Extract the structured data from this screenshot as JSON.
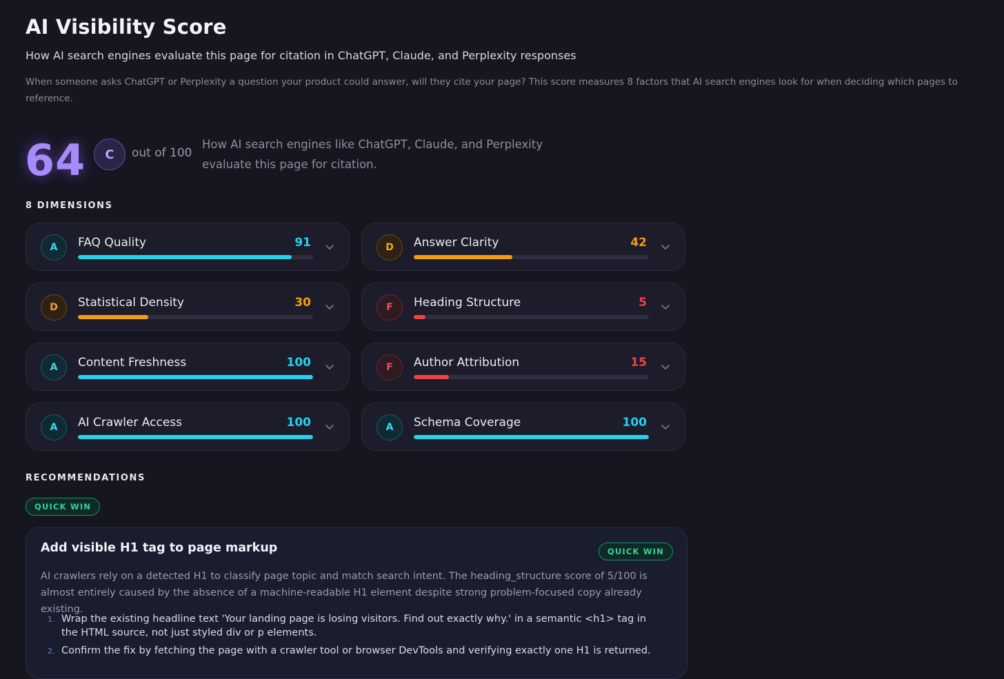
{
  "header": {
    "title": "AI Visibility Score",
    "subtitle": "How AI search engines evaluate this page for citation in ChatGPT, Claude, and Perplexity responses",
    "description": "When someone asks ChatGPT or Perplexity a question your product could answer, will they cite your page? This score measures 8 factors that AI search engines look for when deciding which pages to reference."
  },
  "score": {
    "value": "64",
    "grade": "C",
    "out_of": "out of 100",
    "description": "How AI search engines like ChatGPT, Claude, and Perplexity evaluate this page for citation."
  },
  "dimensions": {
    "heading": "8 DIMENSIONS",
    "items": [
      {
        "grade": "A",
        "label": "FAQ Quality",
        "value": "91",
        "fraction": 0.91,
        "color": "#22d3ee"
      },
      {
        "grade": "D",
        "label": "Answer Clarity",
        "value": "42",
        "fraction": 0.42,
        "color": "#f59e0b"
      },
      {
        "grade": "D",
        "label": "Statistical Density",
        "value": "30",
        "fraction": 0.3,
        "color": "#f59e0b"
      },
      {
        "grade": "F",
        "label": "Heading Structure",
        "value": "5",
        "fraction": 0.05,
        "color": "#ef4444"
      },
      {
        "grade": "A",
        "label": "Content Freshness",
        "value": "100",
        "fraction": 1.0,
        "color": "#22d3ee"
      },
      {
        "grade": "F",
        "label": "Author Attribution",
        "value": "15",
        "fraction": 0.15,
        "color": "#ef4444"
      },
      {
        "grade": "A",
        "label": "AI Crawler Access",
        "value": "100",
        "fraction": 1.0,
        "color": "#22d3ee"
      },
      {
        "grade": "A",
        "label": "Schema Coverage",
        "value": "100",
        "fraction": 1.0,
        "color": "#22d3ee"
      }
    ]
  },
  "recommendations": {
    "heading": "RECOMMENDATIONS",
    "filter_pill": "QUICK WIN",
    "card": {
      "title": "Add visible H1 tag to page markup",
      "tag": "QUICK WIN",
      "body": "AI crawlers rely on a detected H1 to classify page topic and match search intent. The heading_structure score of 5/100 is almost entirely caused by the absence of a machine-readable H1 element despite strong problem-focused copy already existing.",
      "steps": [
        {
          "num": "1.",
          "text": "Wrap the existing headline text 'Your landing page is losing visitors. Find out exactly why.' in a semantic <h1> tag in the HTML source, not just styled div or p elements."
        },
        {
          "num": "2.",
          "text": "Confirm the fix by fetching the page with a crawler tool or browser DevTools and verifying exactly one H1 is returned."
        }
      ]
    }
  }
}
